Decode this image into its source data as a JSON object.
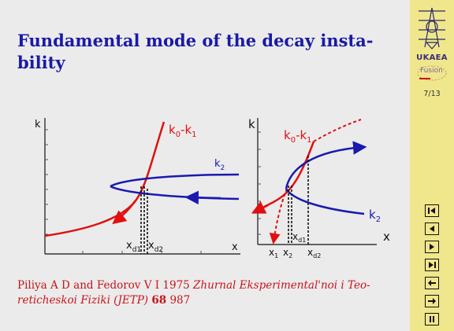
{
  "slide": {
    "title": "Fundamental mode of the decay insta-\nbility",
    "citation": {
      "authors_year": "Piliya A D and Fedorov V I 1975 ",
      "journal": "Zhurnal Eksperimental'noi i Teo-reticheskoi Fiziki (JETP)",
      "volume": "68",
      "pages": " 987"
    }
  },
  "left_diagram": {
    "y_axis_label": "k",
    "x_axis_label": "x",
    "curve_k0_k1_label": {
      "main": "k",
      "sub0": "0",
      "dash": "-k",
      "sub1": "1"
    },
    "curve_k2_label": {
      "main": "k",
      "sub": "2"
    },
    "xd1_label": {
      "main": "x",
      "sub": "d1"
    },
    "xd2_label": {
      "main": "x",
      "sub": "d2"
    }
  },
  "right_diagram": {
    "y_axis_label": "k",
    "x_axis_label": "x",
    "curve_k0_k1_label": {
      "main": "k",
      "sub0": "0",
      "dash": "-k",
      "sub1": "1"
    },
    "curve_k2_label": {
      "main": "k",
      "sub": "2"
    },
    "x1_label": {
      "main": "x",
      "sub": "1"
    },
    "x2_label": {
      "main": "x",
      "sub": "2"
    },
    "xd1_label": {
      "main": "x",
      "sub": "d1"
    },
    "xd2_label": {
      "main": "x",
      "sub": "d2"
    }
  },
  "sidebar": {
    "organization": "UKAEA",
    "logo_text": "Fusion",
    "page_indicator": "7/13",
    "nav_buttons": [
      "first",
      "previous",
      "next",
      "last",
      "back",
      "forward",
      "pause"
    ]
  },
  "colors": {
    "title": "#1a1aa6",
    "citation": "#c8141a",
    "red_curve": "#e01010",
    "blue_curve": "#1a1ab0",
    "sidebar_bg": "#f0e68c"
  }
}
